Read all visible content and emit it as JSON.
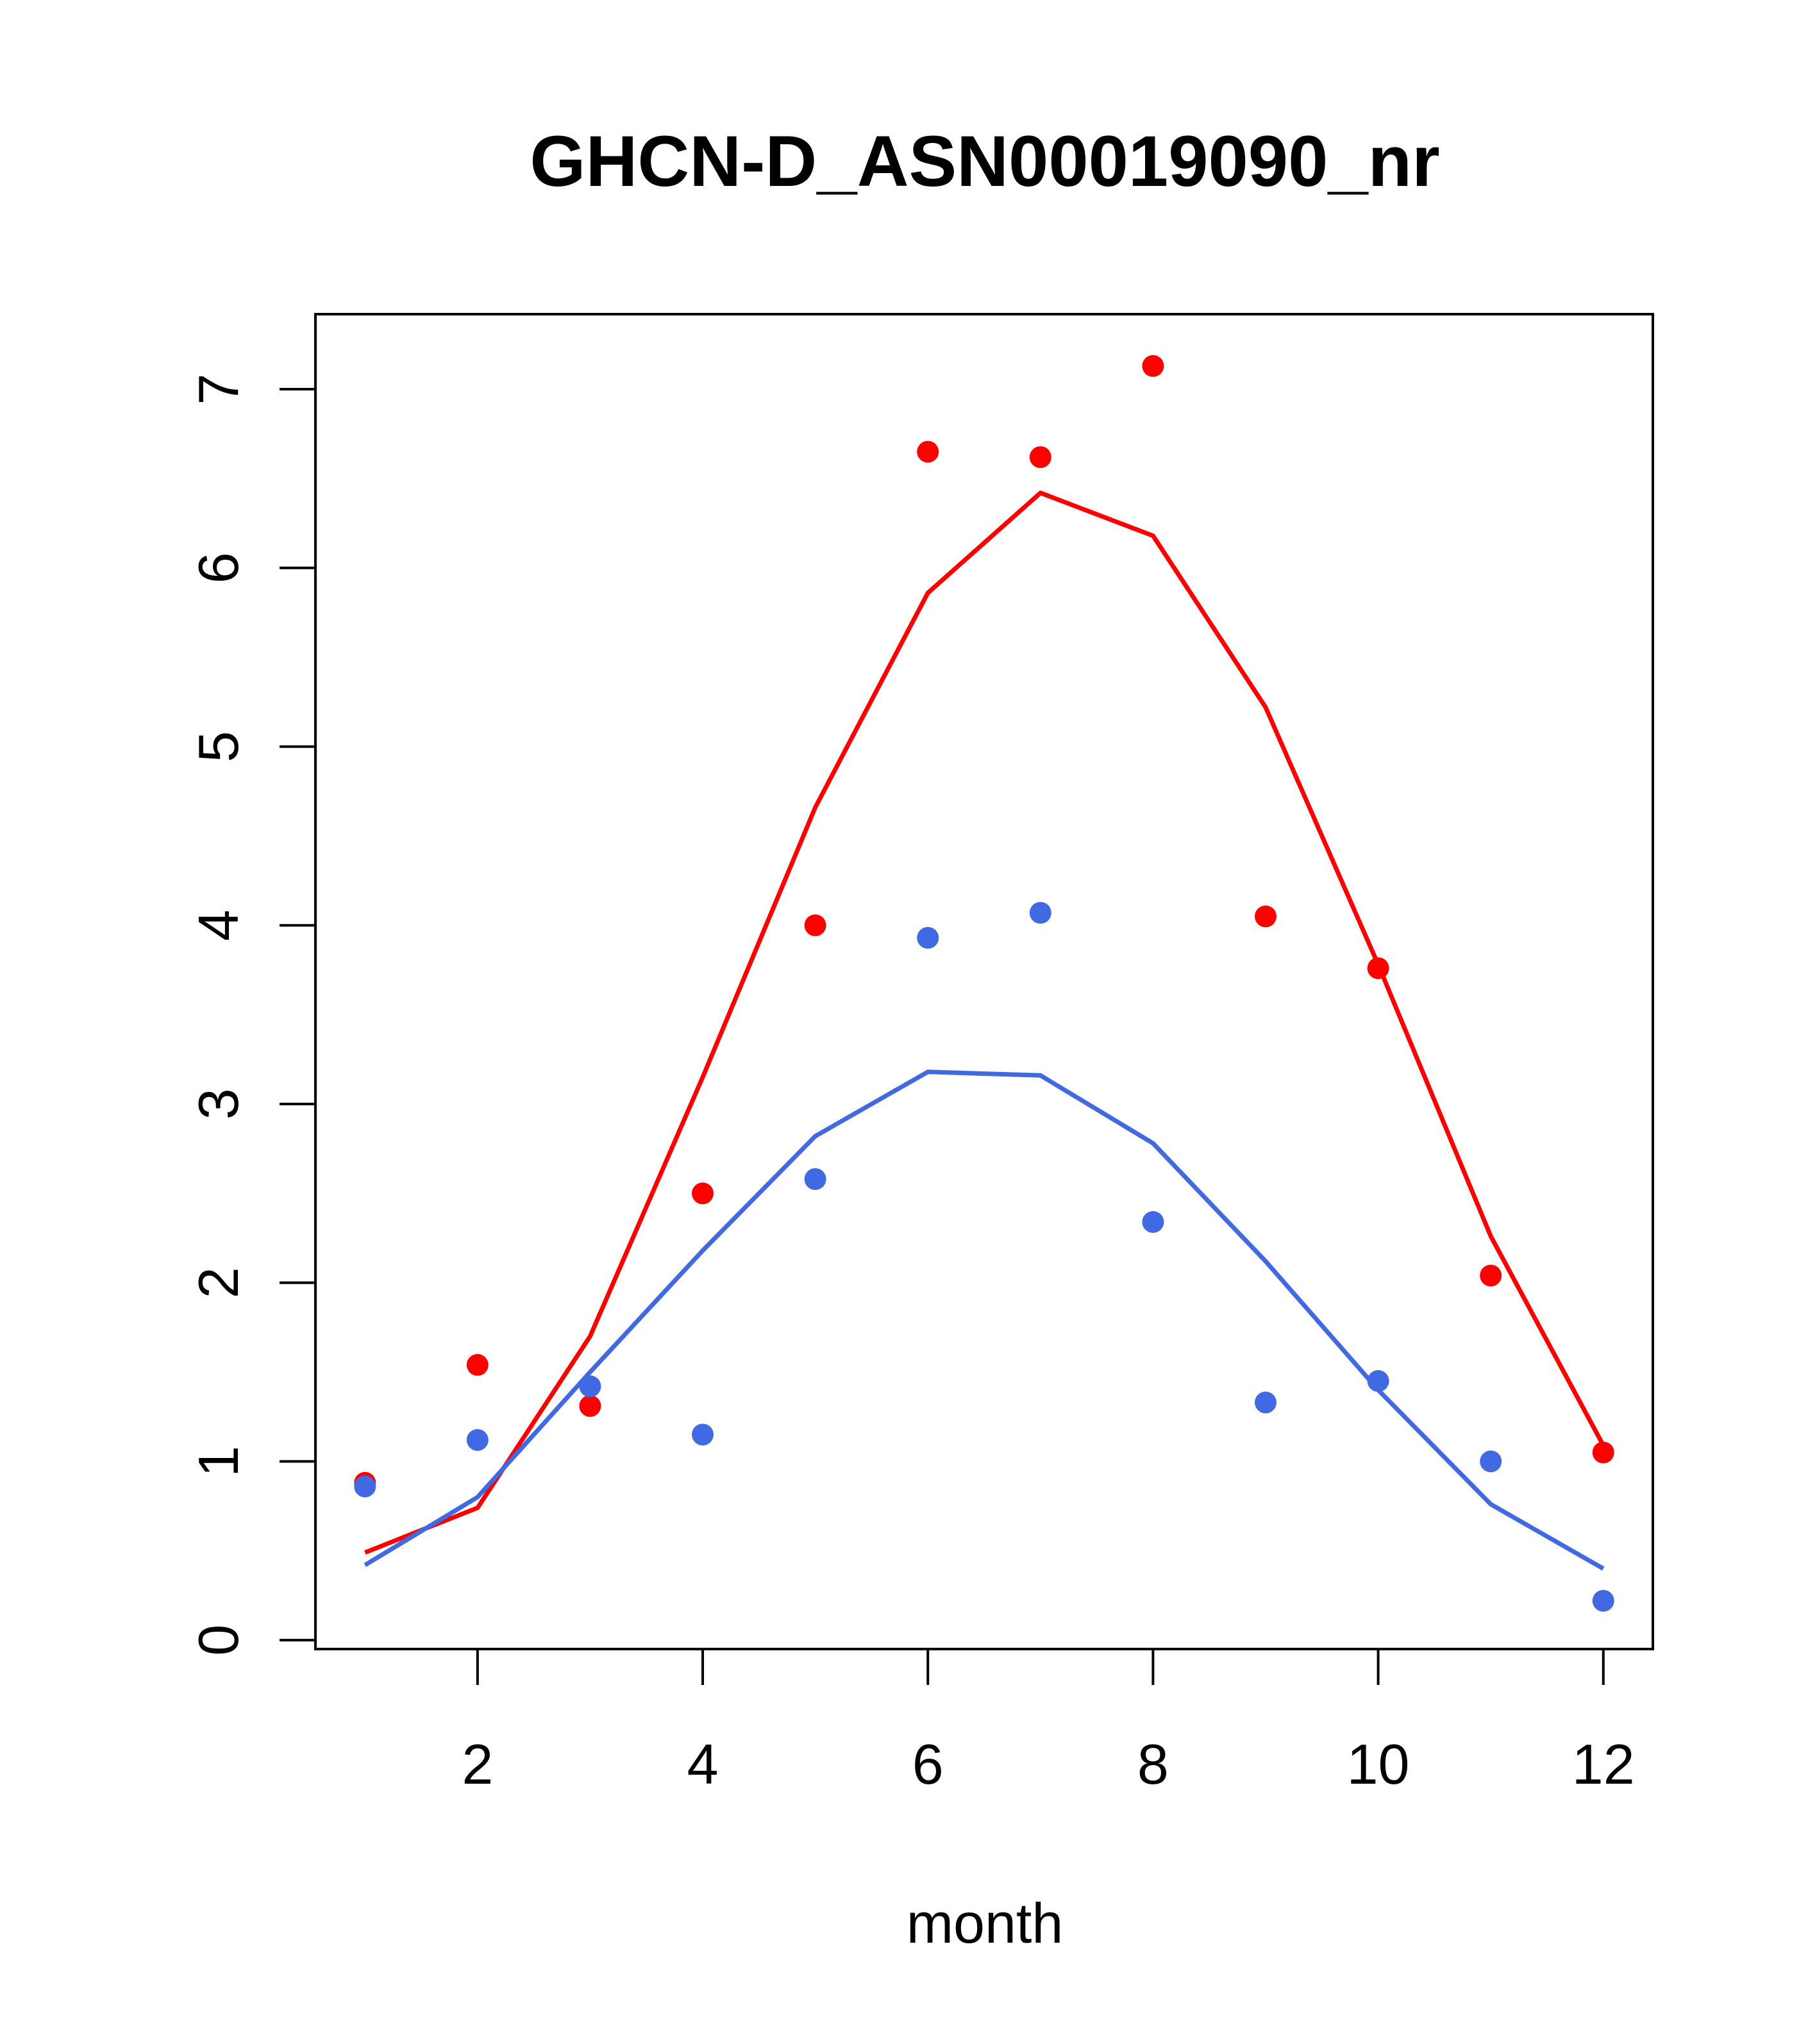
{
  "chart_data": {
    "type": "scatter",
    "title": "GHCN-D_ASN00019090_nr",
    "xlabel": "month",
    "ylabel": "",
    "xlim": [
      0.56,
      12.44
    ],
    "ylim": [
      -0.05,
      7.42
    ],
    "x_ticks": [
      2,
      4,
      6,
      8,
      10,
      12
    ],
    "y_ticks": [
      0,
      1,
      2,
      3,
      4,
      5,
      6,
      7
    ],
    "grid": false,
    "legend": "none",
    "x": [
      1,
      2,
      3,
      4,
      5,
      6,
      7,
      8,
      9,
      10,
      11,
      12
    ],
    "series": [
      {
        "color": "#ff0000",
        "points": [
          0.88,
          1.54,
          1.31,
          2.5,
          4.0,
          6.65,
          6.62,
          7.13,
          4.05,
          3.76,
          2.04,
          1.05
        ],
        "line": [
          0.49,
          0.74,
          1.7,
          3.15,
          4.66,
          5.86,
          6.42,
          6.18,
          5.22,
          3.78,
          2.26,
          1.09
        ]
      },
      {
        "color": "#4169e1",
        "points": [
          0.86,
          1.12,
          1.42,
          1.15,
          2.58,
          3.93,
          4.07,
          2.34,
          1.33,
          1.45,
          1.0,
          0.22
        ],
        "line": [
          0.42,
          0.8,
          1.5,
          2.18,
          2.82,
          3.18,
          3.16,
          2.78,
          2.12,
          1.4,
          0.76,
          0.4
        ]
      }
    ]
  }
}
